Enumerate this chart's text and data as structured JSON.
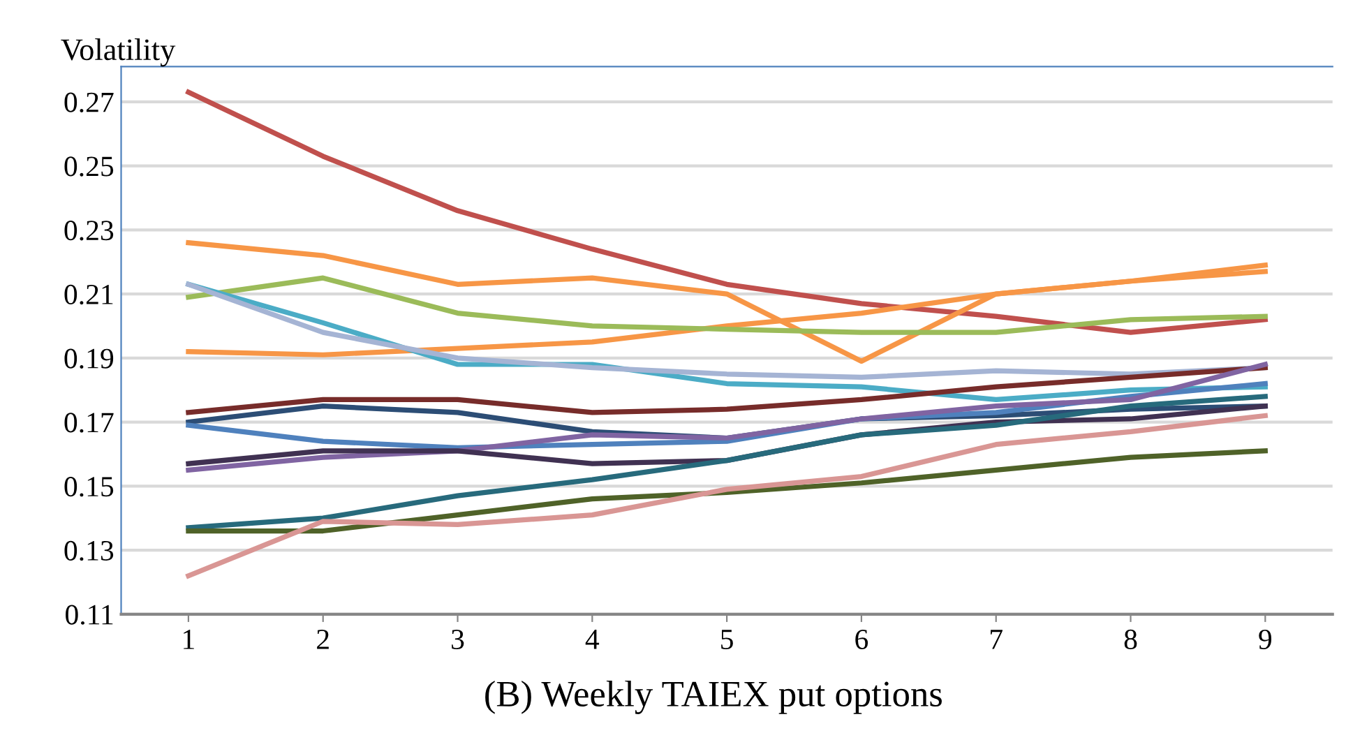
{
  "chart_data": {
    "type": "line",
    "title": "(B) Weekly TAIEX put options",
    "ylabel": "Volatility",
    "categories": [
      "1",
      "2",
      "3",
      "4",
      "5",
      "6",
      "7",
      "8",
      "9"
    ],
    "series": [
      {
        "color": "#c0504d",
        "values": [
          0.273,
          0.253,
          0.236,
          0.224,
          0.213,
          0.207,
          0.203,
          0.198,
          0.202
        ]
      },
      {
        "color": "#f79646",
        "values": [
          0.226,
          0.222,
          0.213,
          0.215,
          0.21,
          0.189,
          0.21,
          0.214,
          0.217
        ]
      },
      {
        "color": "#f79646",
        "values": [
          0.192,
          0.191,
          0.193,
          0.195,
          0.2,
          0.204,
          0.21,
          0.214,
          0.219
        ]
      },
      {
        "color": "#9bbb59",
        "values": [
          0.209,
          0.215,
          0.204,
          0.2,
          0.199,
          0.198,
          0.198,
          0.202,
          0.203
        ]
      },
      {
        "color": "#4bacc6",
        "values": [
          0.213,
          0.201,
          0.188,
          0.188,
          0.182,
          0.181,
          0.177,
          0.18,
          0.181
        ]
      },
      {
        "color": "#a5b4d4",
        "values": [
          0.213,
          0.198,
          0.19,
          0.187,
          0.185,
          0.184,
          0.186,
          0.185,
          0.187
        ]
      },
      {
        "color": "#772c2a",
        "values": [
          0.173,
          0.177,
          0.177,
          0.173,
          0.174,
          0.177,
          0.181,
          0.184,
          0.187
        ]
      },
      {
        "color": "#2c4d75",
        "values": [
          0.17,
          0.175,
          0.173,
          0.167,
          0.165,
          0.171,
          0.172,
          0.174,
          0.175
        ]
      },
      {
        "color": "#4f81bd",
        "values": [
          0.169,
          0.164,
          0.162,
          0.163,
          0.164,
          0.171,
          0.173,
          0.178,
          0.182
        ]
      },
      {
        "color": "#8064a2",
        "values": [
          0.155,
          0.159,
          0.161,
          0.166,
          0.165,
          0.171,
          0.175,
          0.177,
          0.188
        ]
      },
      {
        "color": "#403152",
        "values": [
          0.157,
          0.161,
          0.161,
          0.157,
          0.158,
          0.166,
          0.17,
          0.171,
          0.175
        ]
      },
      {
        "color": "#276a7c",
        "values": [
          0.137,
          0.14,
          0.147,
          0.152,
          0.158,
          0.166,
          0.169,
          0.175,
          0.178
        ]
      },
      {
        "color": "#4f6228",
        "values": [
          0.136,
          0.136,
          0.141,
          0.146,
          0.148,
          0.151,
          0.155,
          0.159,
          0.161
        ]
      },
      {
        "color": "#d99694",
        "values": [
          0.122,
          0.139,
          0.138,
          0.141,
          0.149,
          0.153,
          0.163,
          0.167,
          0.172
        ]
      }
    ],
    "ylim": [
      0.11,
      0.281
    ],
    "yticks": [
      0.11,
      0.13,
      0.15,
      0.17,
      0.19,
      0.21,
      0.23,
      0.25,
      0.27
    ],
    "grid": "y",
    "line_style": "solid"
  }
}
